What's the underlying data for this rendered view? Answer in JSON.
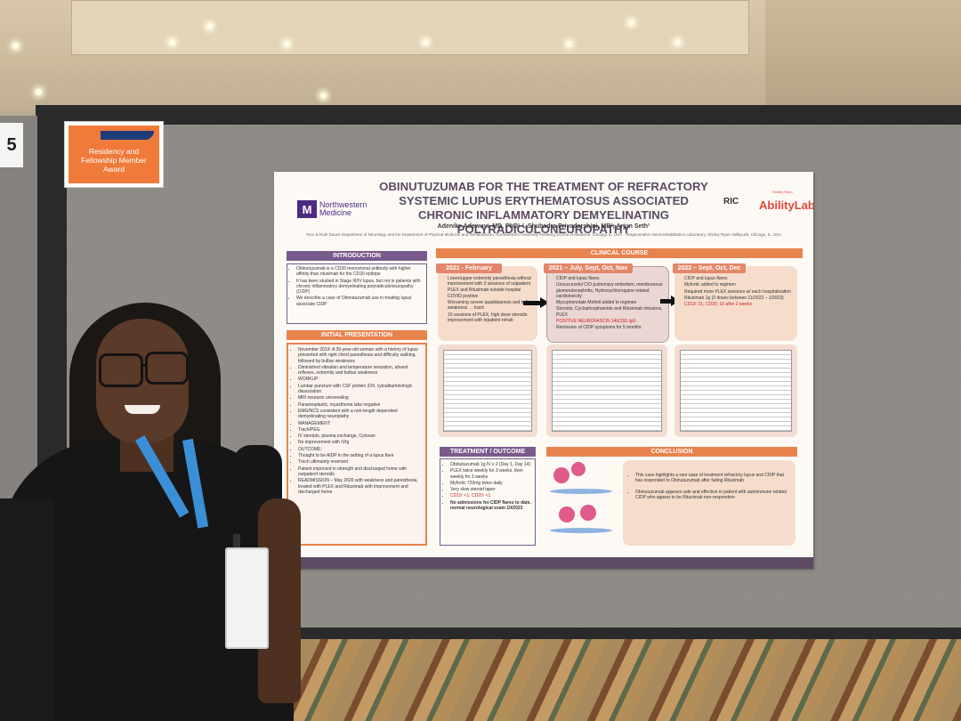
{
  "panel_number": "5",
  "award_sign": {
    "text": "Residency and Fellowship Member Award"
  },
  "poster": {
    "title": "OBINUTUZUMAB FOR THE TREATMENT OF REFRACTORY SYSTEMIC LUPUS ERYTHEMATOSUS ASSOCIATED CHRONIC INFLAMMATORY DEMYELINATING POLYRADICULONEUROPATHY",
    "authors": "Adenike Adewuyi, MD, PhD¹·², Shubadra Priyadarshini, MD³; Arjun Seth¹",
    "affiliation": "¹Ken & Ruth Davee Department of Neurology and the Department of Physical Medicine and Rehabilitation, Northwestern University Feinberg School of Medicine, Chicago IL, USA · ²Regenerative Neurorehabilitation Laboratory, Shirley Ryan AbilityLab, Chicago, IL, USA",
    "logo_left": {
      "mark": "M",
      "text_line1": "Northwestern",
      "text_line2": "Medicine"
    },
    "logo_right_1": "RIC",
    "logo_right_2": "AbilityLab",
    "logo_right_2_small": "Shirley Ryan",
    "accent_colors": {
      "purple": "#7a5a8c",
      "orange": "#e9834e",
      "peach": "#f4d2bd",
      "salmon": "#e2876a"
    },
    "sections": {
      "introduction": {
        "header": "INTRODUCTION",
        "bullets": [
          "Obinutuzumab is a CD20 monoclonal antibody with higher affinity than rituximab for the CD20 epitope",
          "It has been studied in Stage III/IV lupus, but not in patients with chronic inflammatory demyelinating polyradiculoneuropathy (CIDP)",
          "We describe a case of Obinutuzumab use in treating lupus associate CIDP"
        ]
      },
      "initial_presentation": {
        "header": "INITIAL PRESENTATION",
        "bullets": [
          "November 2019: A 39-year-old woman with a history of lupus presented with right chest paresthesia and difficulty walking, followed by bulbar weakness",
          "Diminished vibration and temperature sensation, absent reflexes, extremity and bulbar weakness",
          "WORKUP:",
          "Lumbar puncture with CSF protein 324, cytoalbuminologic dissociation",
          "MRI neuraxis unrevealing",
          "Paraneoplastic, myasthenia labs negative",
          "EMG/NCS consistent with a non-length dependent demyelinating neuropathy",
          "MANAGEMENT:",
          "Trach/PEG",
          "IV steroids, plasma exchange, Cytoxan",
          "No improvement with IVIg",
          "OUTCOME:",
          "Thought to be AIDP in the setting of a lupus flare",
          "Trach ultimately reversed",
          "Patient improved in strength and discharged home with outpatient steroids",
          "READMISSION – May 2020 with weakness and paresthesia, treated with PLEX and Rituximab with improvement and discharged home"
        ]
      },
      "clinical_course": {
        "header": "CLINICAL COURSE",
        "periods": [
          {
            "label": "2021 - February",
            "bullets": [
              "Lower/upper extremity paresthesia without improvement with 3 sessions of outpatient PLEX and Rituximab outside hospital",
              "COVID positive",
              "Worsening severe quadriparesis and bulbar weakness → trach",
              "10 sessions of PLEX, high dose steroids improvement with inpatient rehab"
            ]
          },
          {
            "label": "2021 – July, Sept, Oct, Nov",
            "bullets": [
              "CIDP and lupus flares",
              "Unsuccessful C/O pulmonary embolism, membranous glomerulonephritis, Hydroxychloroquine related cardiotoxicity",
              "Mycophenolate Mofetil added to regimen",
              "Steroids, Cyclophosphamide and Rituximab infusions, PLEX",
              "POSITIVE NEUROFASCIN 140/155 IgG",
              "Remission of CIDP symptoms for 5 months"
            ]
          },
          {
            "label": "2022 – Sept, Oct, Dec",
            "bullets": [
              "CIDP and lupus flares",
              "Myfortic added to regimen",
              "Required more PLEX sessions w/ each hospitalization",
              "Rituximab 1g (2 doses between 11/2022 – 1/2023)",
              "CD19: 31, CD20: 10 after 2 weeks"
            ]
          }
        ]
      },
      "treatment_outcome": {
        "header": "TREATMENT / OUTCOME",
        "bullets": [
          "Obinutuzumab 1g IV x 2 (Day 1, Day 14)",
          "PLEX twice weekly for 3 weeks, then weekly for 3 weeks",
          "Myfortic 720mg twice daily",
          "Very slow steroid taper",
          "CD19: <1, CD20: <1",
          "No admissions for CIDP flares to date, normal neurological exam 10/2023"
        ]
      },
      "conclusion": {
        "header": "CONCLUSION",
        "bullets": [
          "This case highlights a rare case of treatment refractory lupus and CIDP that has responded to Obinutuzumab after failing Rituximab",
          "Obinutuzumab appears safe and effective in patient with autoimmune related CIDP who appear to be Rituximab non-responders"
        ]
      }
    }
  }
}
